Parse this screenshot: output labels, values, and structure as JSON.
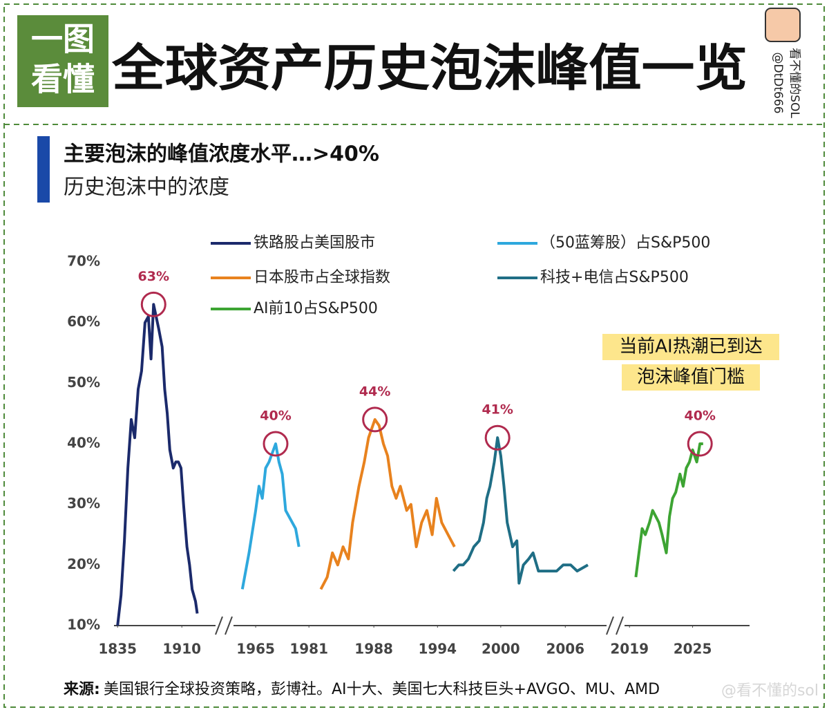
{
  "header": {
    "logo": [
      "一图",
      "看懂"
    ],
    "title": "全球资产历史泡沫峰值一览",
    "author": "看不懂的SOL",
    "handle": "@DtDt666"
  },
  "chart_data": {
    "type": "line",
    "title": "主要泡沫的峰值浓度水平…>40%",
    "subtitle": "历史泡沫中的浓度",
    "ylim": [
      10,
      70
    ],
    "yticks": [
      {
        "value": 10,
        "label": "10%"
      },
      {
        "value": 20,
        "label": "20%"
      },
      {
        "value": 30,
        "label": "30%"
      },
      {
        "value": 40,
        "label": "40%"
      },
      {
        "value": 50,
        "label": "50%"
      },
      {
        "value": 60,
        "label": "60%"
      },
      {
        "value": 70,
        "label": "70%"
      }
    ],
    "grid": false,
    "annotation": [
      "当前AI热潮已到达",
      "泡沫峰值门槛"
    ],
    "series": [
      {
        "name": "铁路股占美国股市",
        "color": "#1b2a6b",
        "xlim": [
          1830,
          1930
        ],
        "xticks": [
          1835,
          1910
        ],
        "x": [
          1835,
          1839,
          1843,
          1847,
          1851,
          1855,
          1859,
          1863,
          1867,
          1871,
          1874,
          1877,
          1880,
          1883,
          1887,
          1890,
          1893,
          1896,
          1900,
          1903,
          1906,
          1909,
          1912,
          1916,
          1919,
          1922,
          1926,
          1928
        ],
        "values": [
          10,
          15,
          24,
          36,
          44,
          41,
          49,
          52,
          60,
          61,
          54,
          63,
          61,
          59,
          56,
          49,
          45,
          39,
          36,
          37,
          37,
          36,
          30,
          23,
          20,
          16,
          14,
          12
        ],
        "peak": {
          "value": 63,
          "label": "63%"
        }
      },
      {
        "name": "（50蓝筹股）占S&P500",
        "color": "#2ea8dd",
        "xlim": [
          1960,
          1982
        ],
        "xticks": [
          1965,
          1981
        ],
        "x": [
          1961,
          1963,
          1965,
          1966,
          1967,
          1968,
          1969,
          1971,
          1972,
          1973,
          1974,
          1975,
          1977,
          1978
        ],
        "values": [
          16,
          22,
          29,
          33,
          31,
          36,
          37,
          40,
          37,
          35,
          29,
          28,
          26,
          23
        ],
        "peak": {
          "value": 40,
          "label": "40%"
        }
      },
      {
        "name": "日本股市占全球指数",
        "color": "#e8821e",
        "xlim": [
          1982,
          1996
        ],
        "xticks": [
          1988,
          1994
        ],
        "x": [
          1983,
          1983.6,
          1984.1,
          1984.6,
          1985.1,
          1985.6,
          1986,
          1986.6,
          1987.1,
          1987.5,
          1988.1,
          1988.5,
          1988.9,
          1989.3,
          1989.7,
          1990.1,
          1990.5,
          1991.1,
          1991.5,
          1992,
          1992.5,
          1993,
          1993.5,
          1993.9,
          1994.4,
          1995,
          1995.6
        ],
        "values": [
          16,
          18,
          22,
          20,
          23,
          21,
          27,
          33,
          37,
          41,
          44,
          43,
          40,
          38,
          33,
          31,
          33,
          29,
          30,
          23,
          27,
          29,
          25,
          31,
          27,
          25,
          23
        ],
        "peak": {
          "value": 44,
          "label": "44%"
        }
      },
      {
        "name": "科技+电信占S&P500",
        "color": "#1f6e85",
        "xlim": [
          1995,
          2009
        ],
        "xticks": [
          2000,
          2006
        ],
        "x": [
          1995.6,
          1996.1,
          1996.5,
          1997,
          1997.5,
          1998,
          1998.4,
          1998.7,
          1999,
          1999.4,
          1999.7,
          2000,
          2000.3,
          2000.6,
          2001.1,
          2001.5,
          2001.7,
          2002.1,
          2002.6,
          2003,
          2003.5,
          2004.1,
          2004.5,
          2005.2,
          2005.8,
          2006.5,
          2007.1,
          2008.1
        ],
        "values": [
          19,
          20,
          20,
          21,
          23,
          24,
          27,
          31,
          33,
          37,
          41,
          38,
          33,
          27,
          23,
          24,
          17,
          20,
          21,
          22,
          19,
          19,
          19,
          19,
          20,
          20,
          19,
          20
        ],
        "peak": {
          "value": 41,
          "label": "41%"
        }
      },
      {
        "name": "AI前10占S&P500",
        "color": "#3da433",
        "xlim": [
          2018,
          2027
        ],
        "xticks": [
          2019,
          2025
        ],
        "x": [
          2019.6,
          2019.9,
          2020.2,
          2020.5,
          2020.9,
          2021.2,
          2021.5,
          2021.8,
          2022.1,
          2022.5,
          2022.8,
          2023.1,
          2023.4,
          2023.8,
          2024.1,
          2024.4,
          2024.7,
          2025,
          2025.4,
          2025.7,
          2026
        ],
        "values": [
          18,
          22,
          26,
          25,
          27,
          29,
          28,
          27,
          25,
          22,
          28,
          31,
          32,
          35,
          33,
          36,
          37,
          39,
          37,
          40,
          40
        ],
        "peak": {
          "value": 40,
          "label": "40%"
        }
      }
    ]
  },
  "footer": {
    "source_label": "来源:",
    "source": "美国银行全球投资策略，彭博社。AI十大、美国七大科技巨头+AVGO、MU、AMD",
    "watermark": "@看不懂的sol"
  }
}
